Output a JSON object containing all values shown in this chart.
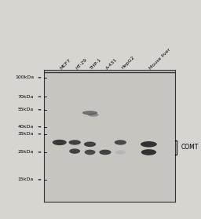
{
  "bg_color": "#d8d4d0",
  "blot_bg": "#c8c4c0",
  "panel_bg": "#d0ccca",
  "border_color": "#333333",
  "lane_labels": [
    "MCF7",
    "HT-29",
    "THP-1",
    "A-431",
    "HepG2",
    "Mouse liver"
  ],
  "mw_labels": [
    "100kDa",
    "70kDa",
    "55kDa",
    "40kDa",
    "35kDa",
    "25kDa",
    "15kDa"
  ],
  "mw_positions": [
    100,
    70,
    55,
    40,
    35,
    25,
    15
  ],
  "annotation": "COMT",
  "band_color_dark": "#2a2a2a",
  "band_color_mid": "#555555",
  "band_color_light": "#888888",
  "band_color_very_light": "#aaaaaa",
  "blot_xlim": [
    0,
    6
  ],
  "blot_ylim": [
    10,
    110
  ]
}
